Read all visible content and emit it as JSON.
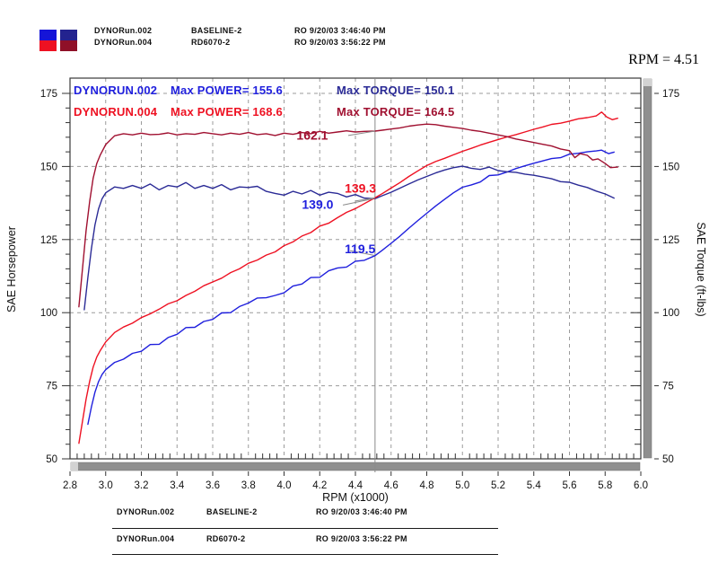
{
  "readout": {
    "label": "RPM = 4.51"
  },
  "legend_top": {
    "swatches": [
      {
        "top_color": "#1515d8",
        "bottom_color": "#ee1122"
      },
      {
        "top_color": "#23238f",
        "bottom_color": "#8f1028"
      }
    ],
    "rows": [
      {
        "file": "DYNORun.002",
        "desc": "BASELINE-2",
        "ro": "RO  9/20/03 3:46:40 PM"
      },
      {
        "file": "DYNORun.004",
        "desc": "RD6070-2",
        "ro": "RO  9/20/03 3:56:22 PM"
      }
    ]
  },
  "legend_bottom": {
    "rows": [
      {
        "file": "DYNORun.002",
        "desc": "BASELINE-2",
        "ro": "RO  9/20/03 3:46:40 PM"
      },
      {
        "file": "DYNORun.004",
        "desc": "RD6070-2",
        "ro": "RO  9/20/03 3:56:22 PM"
      }
    ]
  },
  "chart_data": {
    "type": "line",
    "title": "",
    "xlabel": "RPM (x1000)",
    "ylabel_left": "SAE Horsepower",
    "ylabel_right": "SAE Torque (ft-lbs)",
    "xlim": [
      2.8,
      6.0
    ],
    "ylim": [
      50,
      175
    ],
    "x_ticks": [
      2.8,
      3.0,
      3.2,
      3.4,
      3.6,
      3.8,
      4.0,
      4.2,
      4.4,
      4.6,
      4.8,
      5.0,
      5.2,
      5.4,
      5.6,
      5.8,
      6.0
    ],
    "y_ticks": [
      50,
      75,
      100,
      125,
      150,
      175
    ],
    "grid": "dashed",
    "cursor": {
      "rpm": 4.51
    },
    "header_rows": [
      {
        "run": "DYNORUN.002",
        "max_power": "Max POWER= 155.6",
        "max_torque": "Max TORQUE= 150.1",
        "power_color": "#1f1fdd",
        "torque_color": "#2b2b96"
      },
      {
        "run": "DYNORUN.004",
        "max_power": "Max POWER= 168.6",
        "max_torque": "Max TORQUE= 164.5",
        "power_color": "#ee1122",
        "torque_color": "#a01030"
      }
    ],
    "annotations": [
      {
        "text": "162.1",
        "color": "#a01030",
        "rpm": 4.07,
        "value": 159.2,
        "leader": [
          [
            4.36,
            160.6
          ],
          [
            4.51,
            162.1
          ]
        ]
      },
      {
        "text": "139.3",
        "color": "#ee1122",
        "rpm": 4.34,
        "value": 141.0,
        "leader": [
          [
            4.4,
            138.2
          ],
          [
            4.51,
            139.3
          ]
        ]
      },
      {
        "text": "139.0",
        "color": "#1f1fdd",
        "rpm": 4.1,
        "value": 135.6,
        "leader": [
          [
            4.33,
            136.8
          ],
          [
            4.5,
            139.0
          ]
        ]
      },
      {
        "text": "119.5",
        "color": "#1f1fdd",
        "rpm": 4.34,
        "value": 120.4,
        "leader": [
          [
            4.37,
            121.2
          ],
          [
            4.505,
            119.6
          ]
        ]
      }
    ],
    "series": [
      {
        "name": "DYNORUN.002 power (SAE HP)",
        "color": "#1f1fdd",
        "points": [
          [
            2.9,
            61.8
          ],
          [
            2.92,
            67.8
          ],
          [
            2.94,
            72.8
          ],
          [
            2.96,
            76.4
          ],
          [
            2.98,
            78.9
          ],
          [
            3.0,
            80.5
          ],
          [
            3.05,
            83.0
          ],
          [
            3.1,
            84.1
          ],
          [
            3.15,
            86.1
          ],
          [
            3.2,
            86.8
          ],
          [
            3.25,
            89.1
          ],
          [
            3.3,
            89.2
          ],
          [
            3.35,
            91.5
          ],
          [
            3.4,
            92.6
          ],
          [
            3.45,
            94.9
          ],
          [
            3.5,
            95.0
          ],
          [
            3.55,
            97.0
          ],
          [
            3.6,
            97.7
          ],
          [
            3.65,
            99.9
          ],
          [
            3.7,
            100.0
          ],
          [
            3.75,
            102.1
          ],
          [
            3.8,
            103.3
          ],
          [
            3.85,
            105.0
          ],
          [
            3.9,
            105.1
          ],
          [
            3.95,
            105.9
          ],
          [
            4.0,
            106.8
          ],
          [
            4.05,
            109.1
          ],
          [
            4.1,
            109.8
          ],
          [
            4.15,
            112.0
          ],
          [
            4.2,
            112.1
          ],
          [
            4.25,
            114.3
          ],
          [
            4.3,
            115.3
          ],
          [
            4.35,
            115.6
          ],
          [
            4.4,
            117.6
          ],
          [
            4.45,
            117.9
          ],
          [
            4.51,
            119.5
          ],
          [
            4.55,
            121.3
          ],
          [
            4.6,
            123.7
          ],
          [
            4.65,
            126.2
          ],
          [
            4.7,
            128.9
          ],
          [
            4.75,
            131.5
          ],
          [
            4.8,
            134.0
          ],
          [
            4.85,
            136.5
          ],
          [
            4.9,
            138.8
          ],
          [
            4.95,
            141.0
          ],
          [
            5.0,
            142.9
          ],
          [
            5.05,
            143.7
          ],
          [
            5.1,
            144.7
          ],
          [
            5.15,
            146.9
          ],
          [
            5.2,
            147.1
          ],
          [
            5.25,
            148.1
          ],
          [
            5.3,
            149.3
          ],
          [
            5.35,
            150.2
          ],
          [
            5.4,
            151.1
          ],
          [
            5.45,
            151.9
          ],
          [
            5.5,
            152.7
          ],
          [
            5.55,
            153.0
          ],
          [
            5.6,
            154.2
          ],
          [
            5.65,
            154.5
          ],
          [
            5.7,
            155.0
          ],
          [
            5.75,
            155.3
          ],
          [
            5.78,
            155.6
          ],
          [
            5.82,
            154.4
          ],
          [
            5.85,
            154.9
          ]
        ]
      },
      {
        "name": "DYNORUN.002 torque (ft-lbs)",
        "color": "#2b2b96",
        "points": [
          [
            2.88,
            101.0
          ],
          [
            2.9,
            112.0
          ],
          [
            2.92,
            122.0
          ],
          [
            2.94,
            130.0
          ],
          [
            2.96,
            135.5
          ],
          [
            2.98,
            139.0
          ],
          [
            3.0,
            141.0
          ],
          [
            3.05,
            143.0
          ],
          [
            3.1,
            142.5
          ],
          [
            3.15,
            143.5
          ],
          [
            3.2,
            142.5
          ],
          [
            3.25,
            144.0
          ],
          [
            3.3,
            142.0
          ],
          [
            3.35,
            143.5
          ],
          [
            3.4,
            143.0
          ],
          [
            3.45,
            144.5
          ],
          [
            3.5,
            142.5
          ],
          [
            3.55,
            143.5
          ],
          [
            3.6,
            142.5
          ],
          [
            3.65,
            143.8
          ],
          [
            3.7,
            142.0
          ],
          [
            3.75,
            143.0
          ],
          [
            3.8,
            142.8
          ],
          [
            3.85,
            143.2
          ],
          [
            3.9,
            141.5
          ],
          [
            3.95,
            140.8
          ],
          [
            4.0,
            140.2
          ],
          [
            4.05,
            141.5
          ],
          [
            4.1,
            140.6
          ],
          [
            4.15,
            141.8
          ],
          [
            4.2,
            140.2
          ],
          [
            4.25,
            141.2
          ],
          [
            4.3,
            140.8
          ],
          [
            4.35,
            139.6
          ],
          [
            4.4,
            140.4
          ],
          [
            4.45,
            139.2
          ],
          [
            4.51,
            139.0
          ],
          [
            4.55,
            140.0
          ],
          [
            4.6,
            141.2
          ],
          [
            4.65,
            142.6
          ],
          [
            4.7,
            144.0
          ],
          [
            4.75,
            145.4
          ],
          [
            4.8,
            146.6
          ],
          [
            4.85,
            147.8
          ],
          [
            4.9,
            148.8
          ],
          [
            4.95,
            149.6
          ],
          [
            5.0,
            150.1
          ],
          [
            5.05,
            149.4
          ],
          [
            5.1,
            149.0
          ],
          [
            5.15,
            149.8
          ],
          [
            5.2,
            148.6
          ],
          [
            5.25,
            148.2
          ],
          [
            5.3,
            148.0
          ],
          [
            5.35,
            147.4
          ],
          [
            5.4,
            147.0
          ],
          [
            5.45,
            146.4
          ],
          [
            5.5,
            145.8
          ],
          [
            5.55,
            144.8
          ],
          [
            5.6,
            144.6
          ],
          [
            5.65,
            143.6
          ],
          [
            5.7,
            142.8
          ],
          [
            5.75,
            141.6
          ],
          [
            5.8,
            140.6
          ],
          [
            5.85,
            139.2
          ]
        ]
      },
      {
        "name": "DYNORUN.004 power (SAE HP)",
        "color": "#ee1122",
        "points": [
          [
            2.85,
            55.3
          ],
          [
            2.87,
            62.8
          ],
          [
            2.89,
            70.4
          ],
          [
            2.91,
            76.5
          ],
          [
            2.93,
            81.4
          ],
          [
            2.95,
            84.8
          ],
          [
            2.97,
            87.1
          ],
          [
            3.0,
            90.0
          ],
          [
            3.05,
            93.2
          ],
          [
            3.1,
            95.1
          ],
          [
            3.15,
            96.4
          ],
          [
            3.2,
            98.3
          ],
          [
            3.25,
            99.6
          ],
          [
            3.3,
            101.2
          ],
          [
            3.35,
            103.0
          ],
          [
            3.4,
            104.1
          ],
          [
            3.45,
            105.9
          ],
          [
            3.5,
            107.3
          ],
          [
            3.55,
            109.2
          ],
          [
            3.6,
            110.5
          ],
          [
            3.65,
            111.8
          ],
          [
            3.7,
            113.7
          ],
          [
            3.75,
            115.0
          ],
          [
            3.8,
            116.9
          ],
          [
            3.85,
            118.0
          ],
          [
            3.9,
            119.7
          ],
          [
            3.95,
            120.8
          ],
          [
            4.0,
            122.9
          ],
          [
            4.05,
            124.2
          ],
          [
            4.1,
            126.2
          ],
          [
            4.15,
            127.4
          ],
          [
            4.2,
            129.6
          ],
          [
            4.25,
            130.6
          ],
          [
            4.3,
            132.5
          ],
          [
            4.35,
            134.3
          ],
          [
            4.4,
            135.6
          ],
          [
            4.45,
            137.3
          ],
          [
            4.51,
            139.3
          ],
          [
            4.55,
            140.7
          ],
          [
            4.6,
            142.6
          ],
          [
            4.65,
            144.5
          ],
          [
            4.7,
            146.6
          ],
          [
            4.75,
            148.5
          ],
          [
            4.8,
            150.3
          ],
          [
            4.85,
            151.7
          ],
          [
            4.9,
            152.8
          ],
          [
            4.95,
            154.0
          ],
          [
            5.0,
            155.2
          ],
          [
            5.05,
            156.2
          ],
          [
            5.1,
            157.3
          ],
          [
            5.15,
            158.3
          ],
          [
            5.2,
            159.2
          ],
          [
            5.25,
            160.1
          ],
          [
            5.3,
            160.9
          ],
          [
            5.35,
            161.8
          ],
          [
            5.4,
            162.7
          ],
          [
            5.45,
            163.5
          ],
          [
            5.5,
            164.4
          ],
          [
            5.55,
            164.8
          ],
          [
            5.6,
            165.5
          ],
          [
            5.65,
            166.3
          ],
          [
            5.7,
            166.7
          ],
          [
            5.75,
            167.3
          ],
          [
            5.78,
            168.6
          ],
          [
            5.81,
            166.9
          ],
          [
            5.84,
            166.0
          ],
          [
            5.87,
            166.5
          ]
        ]
      },
      {
        "name": "DYNORUN.004 torque (ft-lbs)",
        "color": "#a01030",
        "points": [
          [
            2.85,
            102.0
          ],
          [
            2.87,
            115.0
          ],
          [
            2.89,
            128.0
          ],
          [
            2.91,
            138.0
          ],
          [
            2.93,
            146.0
          ],
          [
            2.95,
            151.0
          ],
          [
            2.97,
            154.0
          ],
          [
            3.0,
            157.5
          ],
          [
            3.05,
            160.5
          ],
          [
            3.1,
            161.2
          ],
          [
            3.15,
            160.8
          ],
          [
            3.2,
            161.4
          ],
          [
            3.25,
            160.9
          ],
          [
            3.3,
            161.0
          ],
          [
            3.35,
            161.5
          ],
          [
            3.4,
            160.8
          ],
          [
            3.45,
            161.2
          ],
          [
            3.5,
            161.0
          ],
          [
            3.55,
            161.6
          ],
          [
            3.6,
            161.2
          ],
          [
            3.65,
            160.8
          ],
          [
            3.7,
            161.4
          ],
          [
            3.75,
            161.0
          ],
          [
            3.8,
            161.6
          ],
          [
            3.85,
            160.9
          ],
          [
            3.9,
            161.2
          ],
          [
            3.95,
            160.6
          ],
          [
            4.0,
            161.4
          ],
          [
            4.05,
            161.0
          ],
          [
            4.1,
            161.6
          ],
          [
            4.15,
            161.2
          ],
          [
            4.2,
            162.0
          ],
          [
            4.25,
            161.4
          ],
          [
            4.3,
            161.8
          ],
          [
            4.35,
            162.2
          ],
          [
            4.4,
            161.8
          ],
          [
            4.45,
            162.0
          ],
          [
            4.51,
            162.1
          ],
          [
            4.55,
            162.4
          ],
          [
            4.6,
            162.8
          ],
          [
            4.65,
            163.2
          ],
          [
            4.7,
            163.8
          ],
          [
            4.75,
            164.2
          ],
          [
            4.8,
            164.5
          ],
          [
            4.85,
            164.3
          ],
          [
            4.9,
            163.8
          ],
          [
            4.95,
            163.4
          ],
          [
            5.0,
            163.0
          ],
          [
            5.05,
            162.4
          ],
          [
            5.1,
            162.0
          ],
          [
            5.15,
            161.4
          ],
          [
            5.2,
            160.8
          ],
          [
            5.25,
            160.2
          ],
          [
            5.3,
            159.4
          ],
          [
            5.35,
            158.8
          ],
          [
            5.4,
            158.2
          ],
          [
            5.45,
            157.6
          ],
          [
            5.5,
            157.0
          ],
          [
            5.55,
            156.0
          ],
          [
            5.6,
            155.4
          ],
          [
            5.63,
            153.0
          ],
          [
            5.66,
            154.4
          ],
          [
            5.7,
            153.8
          ],
          [
            5.73,
            152.2
          ],
          [
            5.76,
            152.6
          ],
          [
            5.8,
            151.0
          ],
          [
            5.83,
            149.6
          ],
          [
            5.87,
            149.8
          ]
        ]
      }
    ]
  }
}
